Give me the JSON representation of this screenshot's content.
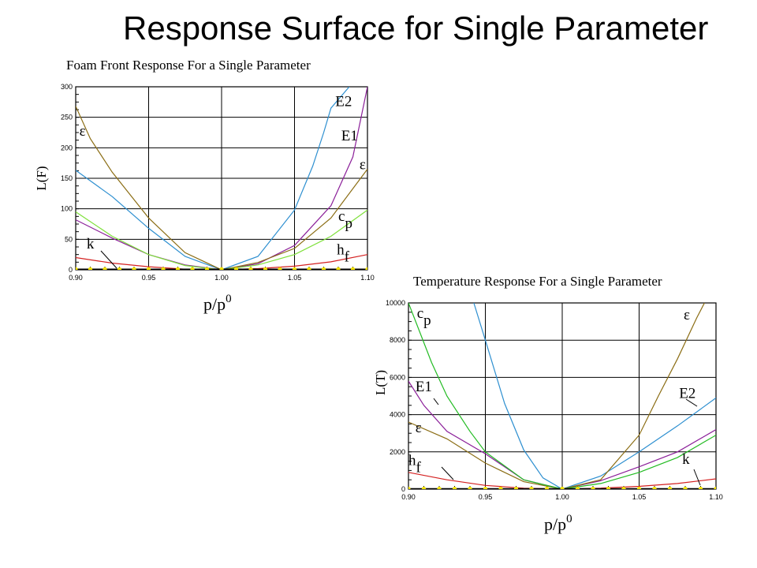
{
  "slide": {
    "title": "Response Surface for Single Parameter"
  },
  "colors": {
    "E2": "#2d8fd0",
    "E1": "#8b1f99",
    "epsilon": "#8b6d14",
    "cp": "#7ee03a",
    "cp_temp": "#22bb22",
    "hf": "#d42020",
    "k": "#f0e000",
    "baseline": "#000000"
  },
  "chart_data": [
    {
      "type": "line",
      "title": "Foam Front Response For a Single Parameter",
      "ylabel": "L(F)",
      "xlabel_base": "p/p",
      "xlabel_sup": "0",
      "xlim": [
        0.9,
        1.1
      ],
      "ylim": [
        0,
        300
      ],
      "xticks": [
        "0.90",
        "0.95",
        "1.00",
        "1.05",
        "1.10"
      ],
      "yticks": [
        "0",
        "50",
        "100",
        "150",
        "200",
        "250",
        "300"
      ],
      "grid": true,
      "series": [
        {
          "name": "E2",
          "color": "#2d8fd0",
          "x": [
            0.9,
            0.925,
            0.95,
            0.975,
            1.0,
            1.025,
            1.05,
            1.0625,
            1.07,
            1.075,
            1.0875
          ],
          "y": [
            163,
            120,
            68,
            22,
            0,
            22,
            98,
            170,
            225,
            265,
            300
          ]
        },
        {
          "name": "E1",
          "color": "#8b1f99",
          "x": [
            0.9,
            0.925,
            0.95,
            0.975,
            1.0,
            1.025,
            1.05,
            1.075,
            1.09,
            1.1
          ],
          "y": [
            82,
            52,
            25,
            8,
            0,
            10,
            40,
            105,
            185,
            300
          ]
        },
        {
          "name": "ε",
          "color": "#8b6d14",
          "x": [
            0.9,
            0.91,
            0.925,
            0.95,
            0.975,
            1.0,
            1.025,
            1.05,
            1.075,
            1.1
          ],
          "y": [
            268,
            215,
            160,
            85,
            28,
            0,
            12,
            35,
            85,
            165
          ]
        },
        {
          "name": "c",
          "sub": "p",
          "color": "#7ee03a",
          "x": [
            0.9,
            0.925,
            0.95,
            0.975,
            1.0,
            1.025,
            1.05,
            1.075,
            1.1
          ],
          "y": [
            95,
            55,
            25,
            7,
            0,
            8,
            25,
            55,
            98
          ]
        },
        {
          "name": "h",
          "sub": "f",
          "color": "#d42020",
          "x": [
            0.9,
            0.925,
            0.95,
            0.975,
            1.0,
            1.025,
            1.05,
            1.075,
            1.1
          ],
          "y": [
            20,
            11,
            5,
            1,
            0,
            2,
            6,
            13,
            25
          ]
        },
        {
          "name": "k",
          "color": "#f0e000",
          "markers": true,
          "x": [
            0.9,
            0.91,
            0.92,
            0.93,
            0.94,
            0.95,
            0.96,
            0.97,
            0.98,
            0.99,
            1.0,
            1.01,
            1.02,
            1.03,
            1.04,
            1.05,
            1.06,
            1.07,
            1.08,
            1.09,
            1.1
          ],
          "y": [
            1,
            1,
            1,
            1,
            1,
            1,
            1,
            1,
            1,
            1,
            1,
            1,
            1,
            1,
            1,
            1,
            1,
            1,
            1,
            1,
            1
          ]
        }
      ],
      "labels": [
        {
          "text": "E2",
          "x": 1.078,
          "y": 268
        },
        {
          "text": "E1",
          "x": 1.082,
          "y": 212
        },
        {
          "text": "ε",
          "x": 1.0945,
          "y": 165
        },
        {
          "text": "ε",
          "x": 0.9025,
          "y": 220
        },
        {
          "text": "c",
          "sub": "p",
          "x": 1.08,
          "y": 80
        },
        {
          "text": "h",
          "sub": "f",
          "x": 1.079,
          "y": 25
        },
        {
          "text": "k",
          "x": 0.9075,
          "y": 35
        }
      ]
    },
    {
      "type": "line",
      "title": "Temperature Response For a Single Parameter",
      "ylabel": "L(T)",
      "xlabel_base": "p/p",
      "xlabel_sup": "0",
      "xlim": [
        0.9,
        1.1
      ],
      "ylim": [
        0,
        10000
      ],
      "xticks": [
        "0.90",
        "0.95",
        "1.00",
        "1.05",
        "1.10"
      ],
      "yticks": [
        "0",
        "2000",
        "4000",
        "6000",
        "8000",
        "10000"
      ],
      "grid": true,
      "series": [
        {
          "name": "E2",
          "color": "#2d8fd0",
          "x": [
            0.9425,
            0.95,
            0.9625,
            0.975,
            0.9875,
            1.0,
            1.025,
            1.05,
            1.075,
            1.1
          ],
          "y": [
            10000,
            8000,
            4600,
            2100,
            600,
            0,
            700,
            2000,
            3400,
            4900
          ]
        },
        {
          "name": "E1",
          "color": "#8b1f99",
          "x": [
            0.9,
            0.91,
            0.925,
            0.95,
            0.975,
            1.0,
            1.025,
            1.05,
            1.075,
            1.1
          ],
          "y": [
            5800,
            4500,
            3100,
            1900,
            500,
            0,
            450,
            1200,
            2000,
            3200
          ]
        },
        {
          "name": "ε",
          "color": "#8b6d14",
          "x": [
            0.9,
            0.925,
            0.95,
            0.975,
            1.0,
            1.025,
            1.05,
            1.0625,
            1.075,
            1.0875,
            1.0925
          ],
          "y": [
            3600,
            2700,
            1400,
            400,
            0,
            500,
            2900,
            5000,
            7000,
            9200,
            10000
          ]
        },
        {
          "name": "c",
          "sub": "p",
          "color": "#22bb22",
          "x": [
            0.9,
            0.915,
            0.925,
            0.94,
            0.95,
            0.975,
            1.0,
            1.025,
            1.05,
            1.075,
            1.1
          ],
          "y": [
            10000,
            6800,
            5000,
            3100,
            2000,
            500,
            0,
            300,
            900,
            1700,
            2900
          ]
        },
        {
          "name": "h",
          "sub": "f",
          "color": "#d42020",
          "x": [
            0.9,
            0.925,
            0.95,
            0.975,
            1.0,
            1.025,
            1.05,
            1.075,
            1.1
          ],
          "y": [
            900,
            500,
            200,
            50,
            0,
            50,
            150,
            300,
            550
          ]
        },
        {
          "name": "k",
          "color": "#f0e000",
          "markers": true,
          "x": [
            0.9,
            0.91,
            0.92,
            0.93,
            0.94,
            0.95,
            0.96,
            0.97,
            0.98,
            0.99,
            1.0,
            1.01,
            1.02,
            1.03,
            1.04,
            1.05,
            1.06,
            1.07,
            1.08,
            1.09,
            1.1
          ],
          "y": [
            20,
            20,
            20,
            20,
            20,
            20,
            20,
            20,
            20,
            20,
            20,
            20,
            20,
            20,
            20,
            20,
            20,
            20,
            20,
            20,
            20
          ]
        }
      ],
      "labels": [
        {
          "text": "c",
          "sub": "p",
          "x": 0.9055,
          "y": 9200
        },
        {
          "text": "ε",
          "x": 1.079,
          "y": 9100
        },
        {
          "text": "E1",
          "x": 0.9045,
          "y": 5250
        },
        {
          "text": "E2",
          "x": 1.076,
          "y": 4900
        },
        {
          "text": "ε",
          "x": 0.9045,
          "y": 3050
        },
        {
          "text": "h",
          "sub": "f",
          "x": 0.9,
          "y": 1300
        },
        {
          "text": "k",
          "x": 1.078,
          "y": 1350
        }
      ]
    }
  ]
}
